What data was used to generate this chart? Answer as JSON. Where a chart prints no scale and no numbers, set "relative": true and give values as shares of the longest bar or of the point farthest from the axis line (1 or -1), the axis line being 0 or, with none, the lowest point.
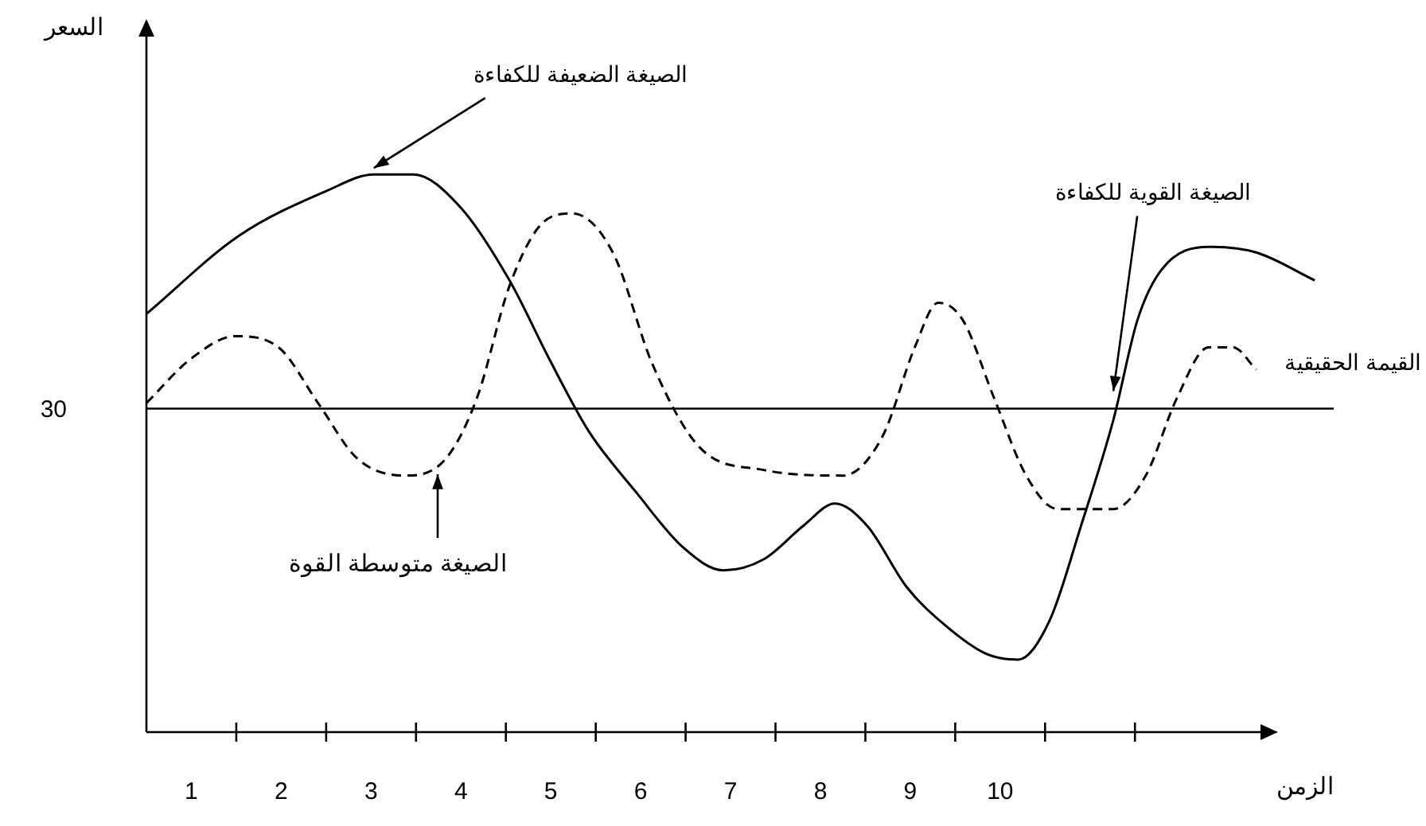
{
  "chart_data": {
    "type": "line",
    "relative": true,
    "xlabel": "الزمن",
    "xlim": [
      0,
      13.3
    ],
    "xticks": [
      {
        "value": 1,
        "label": null
      },
      {
        "value": 2,
        "label": null
      },
      {
        "value": 3,
        "label": null
      },
      {
        "value": 4,
        "label": null
      },
      {
        "value": 5,
        "label": null
      },
      {
        "value": 6,
        "label": null
      },
      {
        "value": 7,
        "label": null
      },
      {
        "value": 8,
        "label": null
      },
      {
        "value": 9,
        "label": null
      },
      {
        "value": 10,
        "label": null
      },
      {
        "value": 11,
        "label": null
      },
      {
        "value": 0.5,
        "label": "1"
      },
      {
        "value": 1.5,
        "label": "2"
      },
      {
        "value": 2.5,
        "label": "3"
      },
      {
        "value": 3.5,
        "label": "4"
      },
      {
        "value": 4.5,
        "label": "5"
      },
      {
        "value": 5.5,
        "label": "6"
      },
      {
        "value": 6.5,
        "label": "7"
      },
      {
        "value": 7.5,
        "label": "8"
      },
      {
        "value": 8.5,
        "label": "9"
      },
      {
        "value": 9.5,
        "label": "10"
      }
    ],
    "series": [
      {
        "color": "#000000",
        "line_style": "solid",
        "x": [
          0,
          1.03,
          2.0,
          2.53,
          2.97,
          3.5,
          4.04,
          4.48,
          4.92,
          5.45,
          5.98,
          6.42,
          6.87,
          7.31,
          7.66,
          8.02,
          8.46,
          8.9,
          9.35,
          9.7,
          10.05,
          10.4,
          10.76,
          11.03,
          11.3,
          11.82,
          12.35,
          13.0
        ],
        "values": [
          0.75,
          0.89,
          0.97,
          1.0,
          1.0,
          0.94,
          0.81,
          0.67,
          0.54,
          0.43,
          0.33,
          0.29,
          0.31,
          0.37,
          0.41,
          0.37,
          0.26,
          0.19,
          0.14,
          0.13,
          0.2,
          0.37,
          0.56,
          0.74,
          0.83,
          0.87,
          0.86,
          0.81
        ]
      },
      {
        "color": "#000000",
        "line_style": "dashed",
        "x": [
          0,
          0.5,
          0.99,
          1.47,
          1.91,
          2.35,
          2.88,
          3.33,
          3.68,
          4.04,
          4.39,
          4.74,
          5.19,
          5.63,
          6.16,
          6.87,
          7.75,
          8.19,
          8.55,
          8.81,
          9.08,
          9.43,
          9.79,
          10.14,
          10.76,
          11.12,
          11.47,
          11.82,
          12.09,
          12.35
        ],
        "values": [
          0.59,
          0.67,
          0.71,
          0.69,
          0.59,
          0.49,
          0.46,
          0.49,
          0.6,
          0.8,
          0.91,
          0.93,
          0.86,
          0.66,
          0.51,
          0.47,
          0.46,
          0.53,
          0.69,
          0.77,
          0.74,
          0.6,
          0.46,
          0.4,
          0.4,
          0.46,
          0.6,
          0.69,
          0.69,
          0.65
        ]
      }
    ],
    "ref_lines": [
      {
        "axis": "y",
        "value": 0.58,
        "label": "القيمة الحقيقية",
        "color": "#000000"
      }
    ],
    "annotations": [
      {
        "text": "الصيغة الضعيفة للكفاءة",
        "x": 2.53,
        "y": 1.0
      },
      {
        "text": "الصيغة القوية للكفاءة",
        "x": 10.76,
        "y": 0.6
      },
      "الصيغة متوسطة القوة",
      "30",
      "السعر"
    ],
    "legend": false,
    "grid": false
  }
}
